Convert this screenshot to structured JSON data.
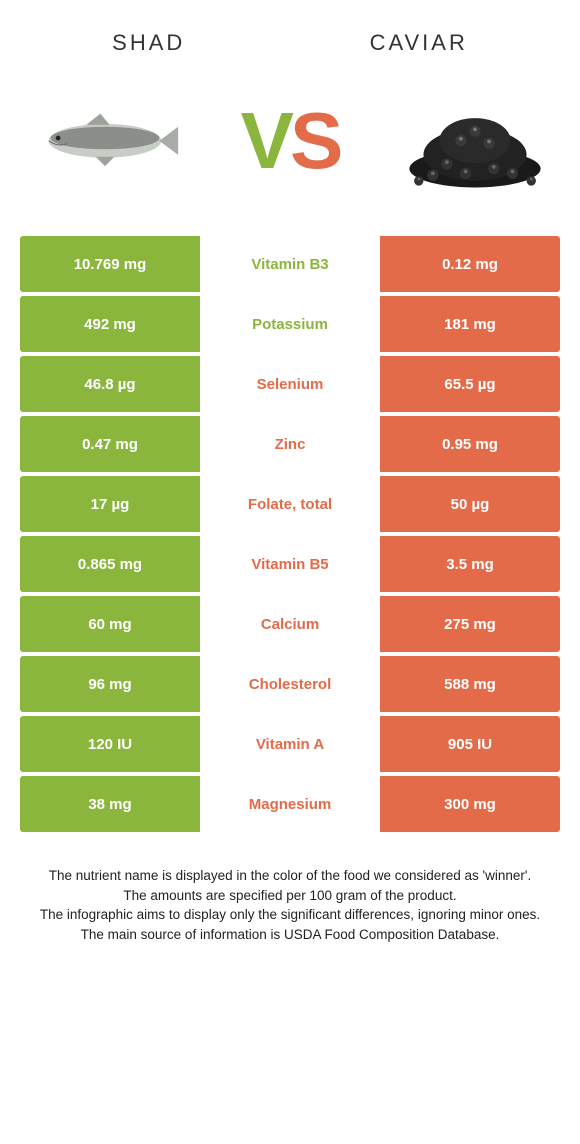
{
  "header": {
    "left": "SHAD",
    "right": "CAVIAR"
  },
  "colors": {
    "green": "#8bb63d",
    "orange": "#e36b4a",
    "green_text": "#8bb63d",
    "orange_text": "#e36b4a"
  },
  "rows": [
    {
      "left": "10.769 mg",
      "label": "Vitamin B3",
      "right": "0.12 mg",
      "winner": "left"
    },
    {
      "left": "492 mg",
      "label": "Potassium",
      "right": "181 mg",
      "winner": "left"
    },
    {
      "left": "46.8 µg",
      "label": "Selenium",
      "right": "65.5 µg",
      "winner": "right"
    },
    {
      "left": "0.47 mg",
      "label": "Zinc",
      "right": "0.95 mg",
      "winner": "right"
    },
    {
      "left": "17 µg",
      "label": "Folate, total",
      "right": "50 µg",
      "winner": "right"
    },
    {
      "left": "0.865 mg",
      "label": "Vitamin B5",
      "right": "3.5 mg",
      "winner": "right"
    },
    {
      "left": "60 mg",
      "label": "Calcium",
      "right": "275 mg",
      "winner": "right"
    },
    {
      "left": "96 mg",
      "label": "Cholesterol",
      "right": "588 mg",
      "winner": "right"
    },
    {
      "left": "120 IU",
      "label": "Vitamin A",
      "right": "905 IU",
      "winner": "right"
    },
    {
      "left": "38 mg",
      "label": "Magnesium",
      "right": "300 mg",
      "winner": "right"
    }
  ],
  "footer": {
    "line1": "The nutrient name is displayed in the color of the food we considered as 'winner'.",
    "line2": "The amounts are specified per 100 gram of the product.",
    "line3": "The infographic aims to display only the significant differences, ignoring minor ones.",
    "line4": "The main source of information is USDA Food Composition Database."
  }
}
